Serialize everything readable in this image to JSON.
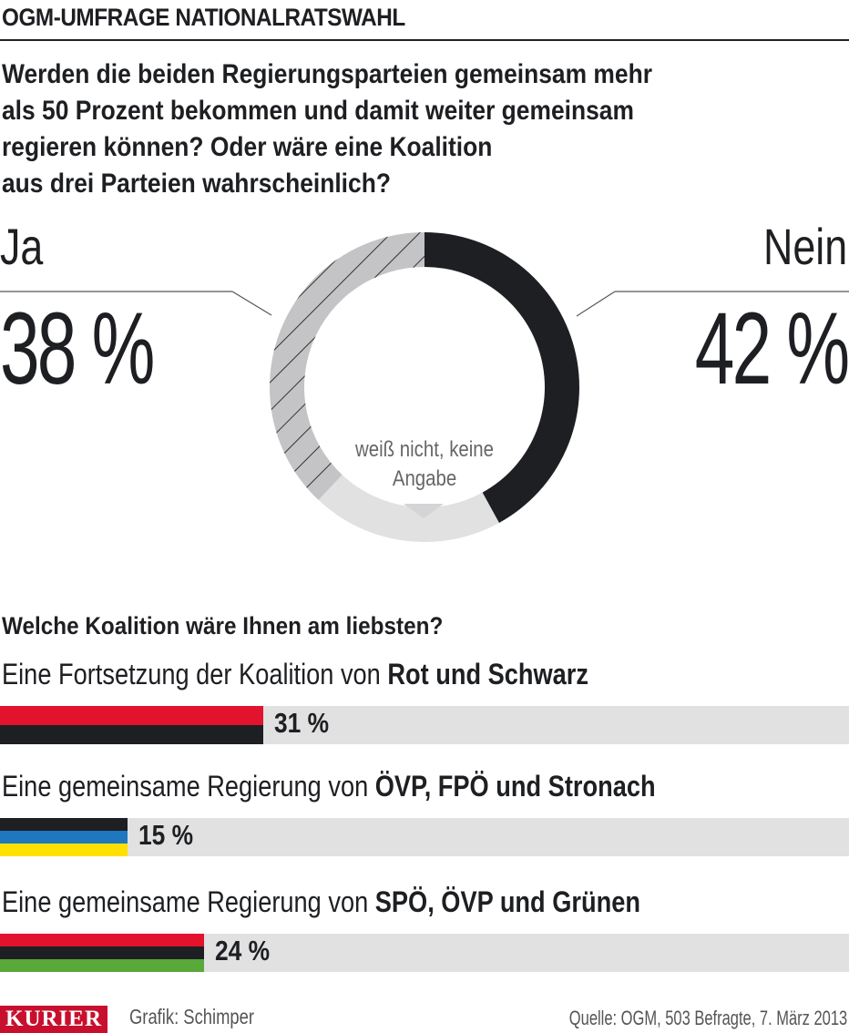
{
  "header": {
    "title": "OGM-UMFRAGE NATIONALRATSWAHL"
  },
  "question": {
    "lines": [
      "Werden die beiden Regierungsparteien gemeinsam mehr",
      "als 50 Prozent bekommen und damit weiter gemeinsam",
      "regieren können? Oder wäre eine Koalition",
      "aus drei Parteien wahrscheinlich?"
    ]
  },
  "subheading": "Welche Koalition wäre Ihnen am liebsten?",
  "footer": {
    "logo": "KURIER",
    "credit": "Grafik: Schimper",
    "source": "Quelle: OGM, 503 Befragte, 7. März 2013"
  },
  "chart_data": [
    {
      "type": "pie",
      "donut": true,
      "slices": [
        {
          "label": "Nein",
          "value_label": "42 %",
          "value": 42,
          "color": "#1d1f22",
          "pattern": "solid"
        },
        {
          "label": "weiß nicht, keine Angabe",
          "value": 20,
          "color": "#e1e1e2",
          "pattern": "solid"
        },
        {
          "label": "Ja",
          "value_label": "38 %",
          "value": 38,
          "color": "#c4c4c6",
          "pattern": "hatched"
        }
      ]
    },
    {
      "type": "bar",
      "orientation": "horizontal",
      "xlim": [
        0,
        100
      ],
      "bars": [
        {
          "prefix": "Eine Fortsetzung der Koalition von ",
          "bold": "Rot und Schwarz",
          "value": 31,
          "value_label": "31 %",
          "stripes": [
            "#e3122d",
            "#1d1f22"
          ]
        },
        {
          "prefix": "Eine gemeinsame Regierung von ",
          "bold": "ÖVP, FPÖ und Stronach",
          "value": 15,
          "value_label": "15 %",
          "stripes": [
            "#1d1f22",
            "#1f77c0",
            "#ffe000"
          ]
        },
        {
          "prefix": "Eine gemeinsame Regierung von ",
          "bold": "SPÖ, ÖVP und Grünen",
          "value": 24,
          "value_label": "24 %",
          "stripes": [
            "#e3122d",
            "#1d1f22",
            "#59a83a"
          ]
        }
      ]
    }
  ]
}
